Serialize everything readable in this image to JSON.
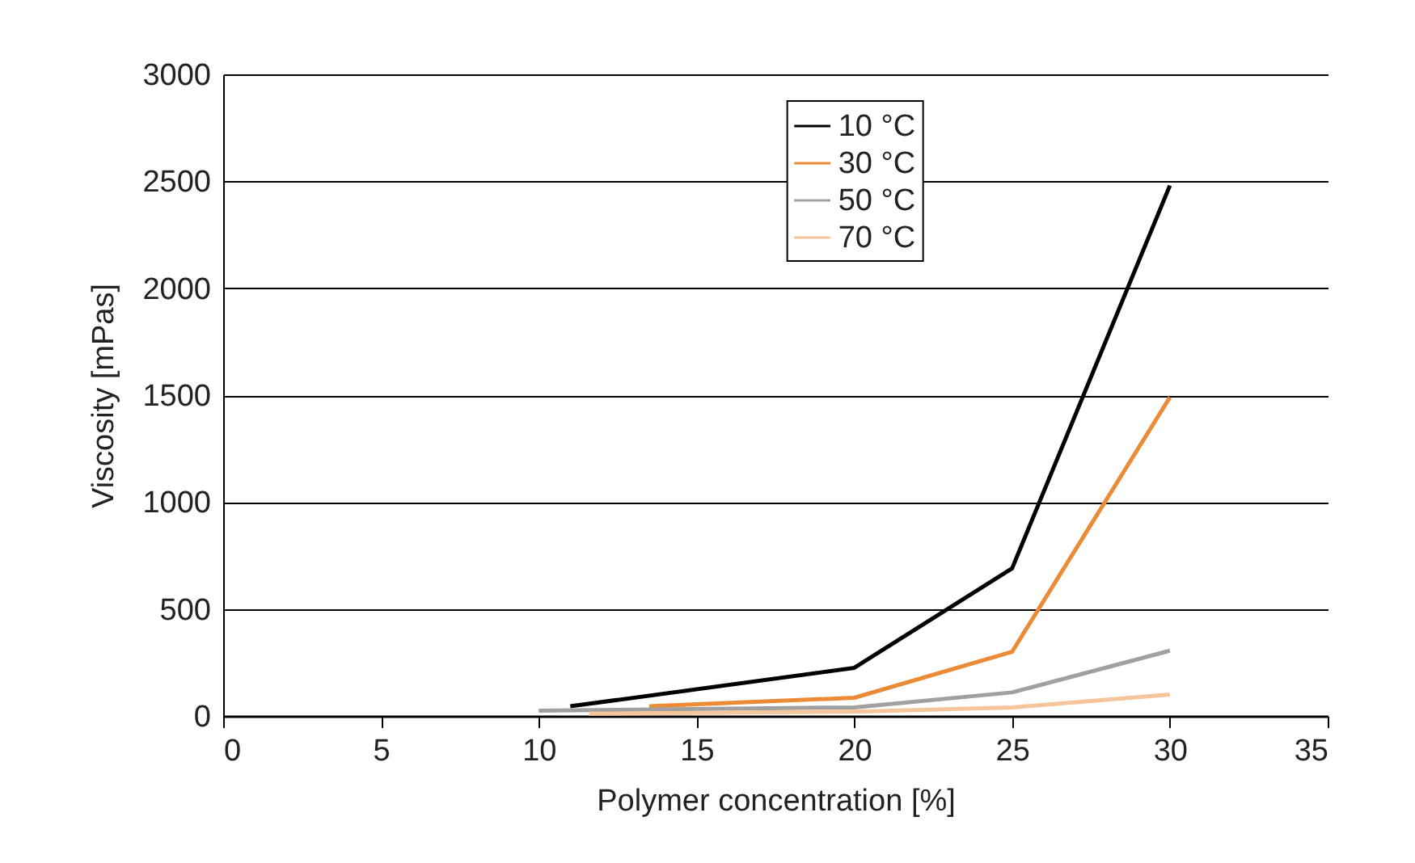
{
  "chart_data": {
    "type": "line",
    "xlabel": "Polymer concentration [%]",
    "ylabel": "Viscosity [mPas]",
    "xlim": [
      0,
      35
    ],
    "xticks": [
      0,
      5,
      10,
      15,
      20,
      25,
      30,
      35
    ],
    "ylim": [
      0,
      3000
    ],
    "yticks": [
      0,
      500,
      1000,
      1500,
      2000,
      2500,
      3000
    ],
    "grid": "y",
    "legend": "top",
    "marker": "none",
    "line_style": "solid",
    "series": [
      {
        "name": "10 °C",
        "color": "#000000",
        "x": [
          11,
          20,
          25,
          30
        ],
        "values": [
          45,
          225,
          690,
          2480
        ]
      },
      {
        "name": "30 °C",
        "color": "#ec8a35",
        "x": [
          13.5,
          20,
          25,
          30
        ],
        "values": [
          45,
          85,
          300,
          1490
        ]
      },
      {
        "name": "50 °C",
        "color": "#a0a0a0",
        "x": [
          10,
          20,
          25,
          30
        ],
        "values": [
          25,
          40,
          110,
          305
        ]
      },
      {
        "name": "70 °C",
        "color": "#f7c59a",
        "x": [
          11.6,
          20,
          25,
          30
        ],
        "values": [
          10,
          20,
          40,
          100
        ]
      }
    ]
  }
}
